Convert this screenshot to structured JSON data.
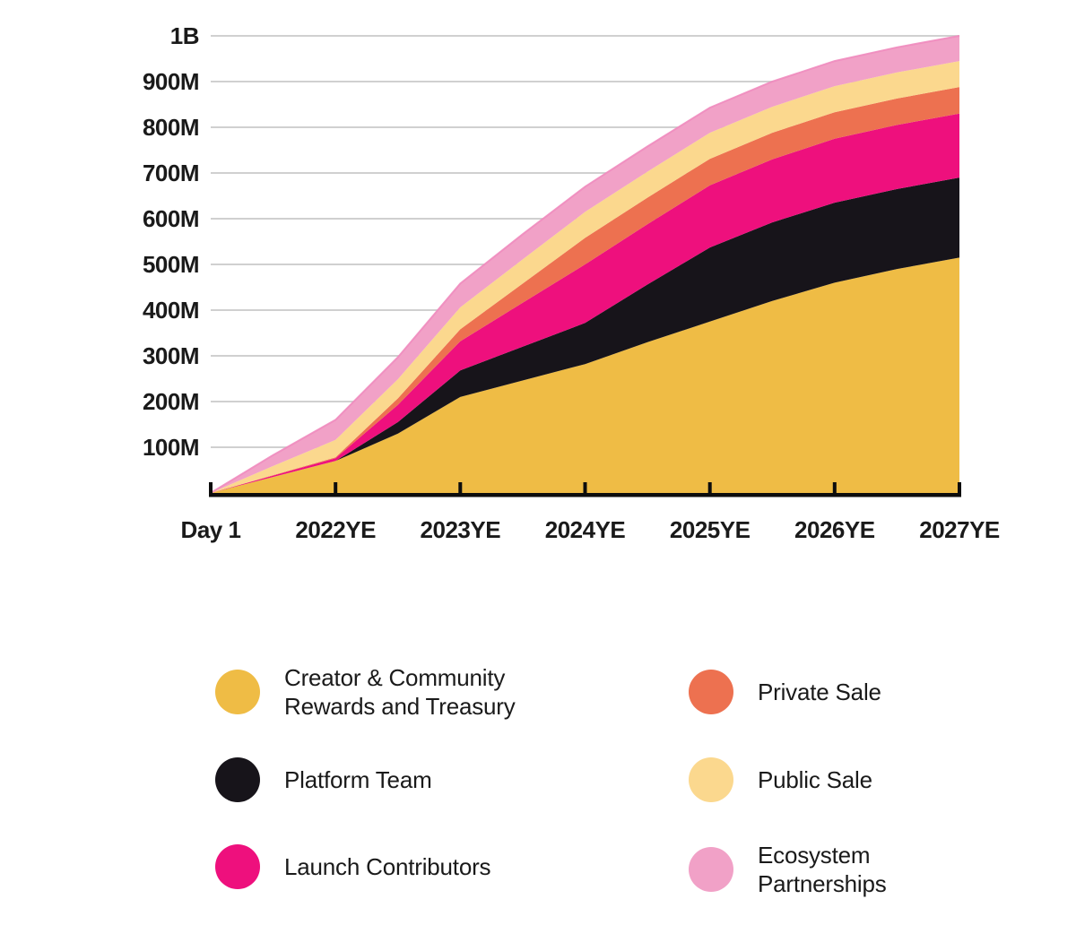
{
  "chart_data": {
    "type": "area",
    "stacked": true,
    "title": "",
    "x_tick_labels": [
      "Day 1",
      "2022YE",
      "2023YE",
      "2024YE",
      "2025YE",
      "2026YE",
      "2027YE"
    ],
    "y_tick_labels": [
      "1B",
      "900M",
      "800M",
      "700M",
      "600M",
      "500M",
      "400M",
      "300M",
      "200M",
      "100M"
    ],
    "y_tick_values_millions": [
      1000,
      900,
      800,
      700,
      600,
      500,
      400,
      300,
      200,
      100
    ],
    "y_max_millions": 1000,
    "grid": "horizontal-only",
    "legend_position": "bottom",
    "sample_x_tick_units": [
      0,
      0.5,
      1,
      1.5,
      2,
      2.5,
      3,
      3.5,
      4,
      4.5,
      5,
      5.5,
      6
    ],
    "series": [
      {
        "key": "creator-community",
        "name": "Creator & Community Rewards and Treasury",
        "color": "#EFBC45",
        "values_millions": [
          0,
          35,
          70,
          130,
          210,
          246,
          282,
          330,
          375,
          420,
          460,
          490,
          515
        ]
      },
      {
        "key": "platform-team",
        "name": "Platform Team",
        "color": "#17141A",
        "values_millions": [
          0,
          0,
          0,
          25,
          58,
          74,
          90,
          126,
          162,
          172,
          175,
          175,
          175
        ]
      },
      {
        "key": "launch-contributors",
        "name": "Launch Contributors",
        "color": "#EE107D",
        "values_millions": [
          0,
          3,
          6,
          38,
          64,
          96,
          128,
          132,
          136,
          138,
          140,
          140,
          140
        ]
      },
      {
        "key": "private-sale",
        "name": "Private Sale",
        "color": "#ED7150",
        "values_millions": [
          0,
          1,
          2,
          14,
          26,
          42,
          58,
          58,
          58,
          58,
          58,
          58,
          58
        ]
      },
      {
        "key": "public-sale",
        "name": "Public Sale",
        "color": "#FBD88E",
        "values_millions": [
          0,
          20,
          38,
          42,
          48,
          53,
          57,
          57,
          57,
          57,
          57,
          57,
          57
        ]
      },
      {
        "key": "ecosystem-partnerships",
        "name": "Ecosystem Partnerships",
        "color": "#F1A1C7",
        "values_millions": [
          0,
          24,
          44,
          48,
          52,
          55,
          55,
          55,
          55,
          55,
          55,
          55,
          55
        ]
      }
    ],
    "totals_at_ticks_millions": [
      0,
      160,
      458,
      670,
      843,
      945,
      1000
    ],
    "top_edge_stroke_color": "#F08BBE",
    "gridline_color": "#C9C9C9",
    "axis_color": "#0d0d0d",
    "label_color": "#1a1a1a"
  },
  "legend": {
    "columns": [
      {
        "side": "left",
        "items": [
          {
            "series_index": 0,
            "lines": [
              "Creator & Community",
              "Rewards and Treasury"
            ]
          },
          {
            "series_index": 1,
            "lines": [
              "Platform Team"
            ]
          },
          {
            "series_index": 2,
            "lines": [
              "Launch Contributors"
            ]
          }
        ]
      },
      {
        "side": "right",
        "items": [
          {
            "series_index": 3,
            "lines": [
              "Private Sale"
            ]
          },
          {
            "series_index": 4,
            "lines": [
              "Public Sale"
            ]
          },
          {
            "series_index": 5,
            "lines": [
              "Ecosystem",
              "Partnerships"
            ]
          }
        ]
      }
    ]
  }
}
